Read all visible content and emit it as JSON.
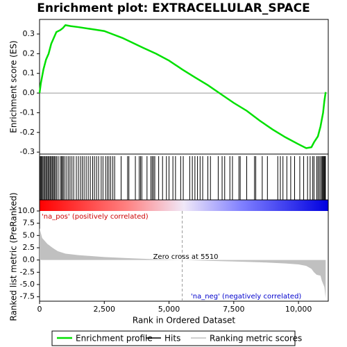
{
  "chart_data": {
    "type": "enrichment",
    "title": "Enrichment plot: EXTRACELLULAR_SPACE",
    "ylabel": "Enrichment score (ES)",
    "y2label": "Ranked list metric (PreRanked)",
    "xlabel": "Rank in Ordered Dataset",
    "pos_label": "'na_pos' (positively correlated)",
    "neg_label": "'na_neg' (negatively correlated)",
    "zero_cross": {
      "value": 5510,
      "label": "Zero cross at 5510"
    },
    "xlim": [
      0,
      11150
    ],
    "xticks": [
      0,
      {
        "value": 2500,
        "label": "2,500"
      },
      {
        "value": 5000,
        "label": "5,000"
      },
      {
        "value": 7500,
        "label": "7,500"
      },
      {
        "value": 10000,
        "label": "10,000"
      }
    ],
    "ylim": [
      -0.31,
      0.374
    ],
    "yticks": [
      {
        "value": -0.3,
        "label": "-0.3"
      },
      -0.2,
      -0.1,
      {
        "value": 0,
        "label": "0.0"
      },
      0.1,
      0.2,
      0.3
    ],
    "y2lim": [
      -8.4,
      10
    ],
    "y2ticks": [
      {
        "value": -7.5,
        "label": "-7.5"
      },
      {
        "value": -5,
        "label": "-5.0"
      },
      -2.5,
      {
        "value": 0,
        "label": "0.0"
      },
      2.5,
      {
        "value": 5,
        "label": "5.0"
      },
      7.5,
      {
        "value": 10,
        "label": "10.0"
      }
    ],
    "series": [
      {
        "name": "Enrichment profile",
        "color": "#00e000",
        "x": [
          0,
          50,
          150,
          250,
          350,
          450,
          550,
          650,
          800,
          900,
          1000,
          1200,
          1500,
          2000,
          2500,
          2800,
          3200,
          3600,
          4000,
          4500,
          5000,
          5510,
          6000,
          6500,
          7000,
          7500,
          8000,
          8500,
          9000,
          9500,
          10000,
          10300,
          10500,
          10600,
          10750,
          10850,
          10950,
          11000,
          11050
        ],
        "values": [
          0,
          0.05,
          0.12,
          0.17,
          0.2,
          0.25,
          0.28,
          0.31,
          0.32,
          0.33,
          0.345,
          0.34,
          0.335,
          0.325,
          0.315,
          0.3,
          0.28,
          0.255,
          0.23,
          0.2,
          0.165,
          0.12,
          0.08,
          0.04,
          -0.005,
          -0.05,
          -0.09,
          -0.14,
          -0.185,
          -0.225,
          -0.26,
          -0.28,
          -0.275,
          -0.25,
          -0.22,
          -0.17,
          -0.1,
          -0.04,
          0.005
        ]
      },
      {
        "name": "Hits",
        "color": "#000000",
        "x": [
          30,
          60,
          90,
          130,
          170,
          210,
          250,
          290,
          330,
          370,
          410,
          450,
          490,
          530,
          570,
          610,
          660,
          720,
          800,
          850,
          880,
          920,
          980,
          1050,
          1120,
          1180,
          1250,
          1320,
          1420,
          1500,
          1580,
          1650,
          1720,
          1800,
          1880,
          1960,
          2050,
          2120,
          2200,
          2280,
          2380,
          2450,
          2550,
          2620,
          2680,
          2750,
          2830,
          2900,
          3150,
          3400,
          3450,
          3700,
          3850,
          3900,
          3950,
          4150,
          4300,
          4350,
          4400,
          4450,
          4600,
          4750,
          4900,
          5000,
          5150,
          5250,
          5450,
          5550,
          5800,
          5900,
          6000,
          6100,
          6200,
          6300,
          6500,
          6600,
          6900,
          7050,
          7150,
          7350,
          7450,
          7700,
          7750,
          8000,
          8300,
          8350,
          8600,
          8800,
          9200,
          9300,
          9400,
          9550,
          9700,
          9850,
          10050,
          10200,
          10350,
          10450,
          10550,
          10600,
          10700,
          10750,
          10800,
          10850,
          10900,
          10930,
          10960,
          10990,
          11020,
          11040
        ]
      },
      {
        "name": "Ranking metric scores",
        "color": "#c0c0c0",
        "x": [
          0,
          100,
          300,
          500,
          700,
          1000,
          1500,
          2500,
          3500,
          4500,
          5510,
          6500,
          7500,
          8500,
          9500,
          10000,
          10300,
          10500,
          10600,
          10700,
          10850,
          10900,
          11000,
          11050
        ],
        "values": [
          6.5,
          4.5,
          3.3,
          2.5,
          1.8,
          1.3,
          1.0,
          0.6,
          0.35,
          0.15,
          0,
          -0.15,
          -0.3,
          -0.45,
          -0.7,
          -0.9,
          -1.2,
          -1.8,
          -2.5,
          -3.0,
          -3.2,
          -4.2,
          -5.5,
          -7.8
        ]
      }
    ]
  }
}
